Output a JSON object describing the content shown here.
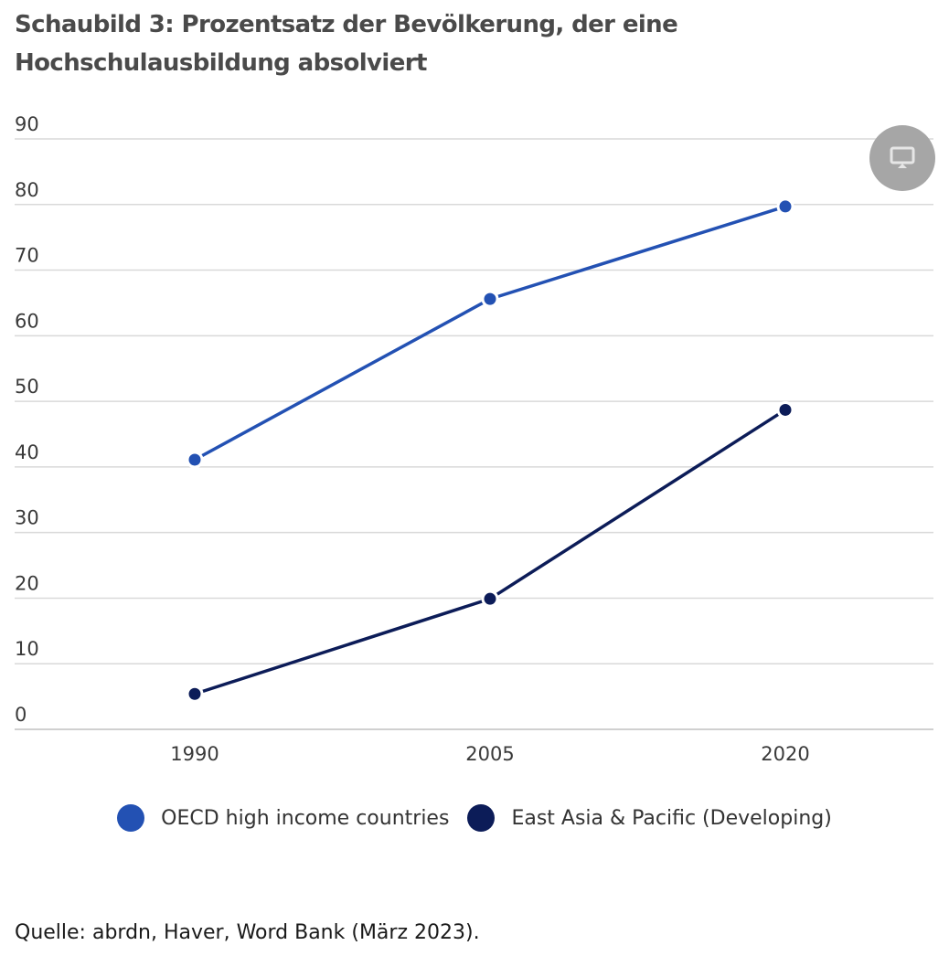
{
  "title": "Schaubild 3: Prozentsatz der Bevölkerung, der eine Hochschulausbildung absolviert",
  "source": "Quelle: abrdn, Haver, Word Bank (März 2023).",
  "present_button": {
    "icon": "monitor-icon"
  },
  "colors": {
    "oecd": "#2351b3",
    "east_asia": "#0c1c58",
    "grid": "#d9d9d9",
    "button_bg": "#a6a6a6"
  },
  "chart_data": {
    "type": "line",
    "title": "Schaubild 3: Prozentsatz der Bevölkerung, der eine Hochschulausbildung absolviert",
    "xlabel": "",
    "ylabel": "",
    "x": [
      "1990",
      "2005",
      "2020"
    ],
    "ylim": [
      0,
      90
    ],
    "yticks": [
      0,
      10,
      20,
      30,
      40,
      50,
      60,
      70,
      80,
      90
    ],
    "grid": true,
    "legend_position": "bottom-center",
    "series": [
      {
        "name": "OECD high income countries",
        "color": "#2351b3",
        "values": [
          41.1,
          65.6,
          79.7
        ]
      },
      {
        "name": "East Asia & Pacific (Developing)",
        "color": "#0c1c58",
        "values": [
          5.4,
          19.9,
          48.7
        ]
      }
    ]
  }
}
